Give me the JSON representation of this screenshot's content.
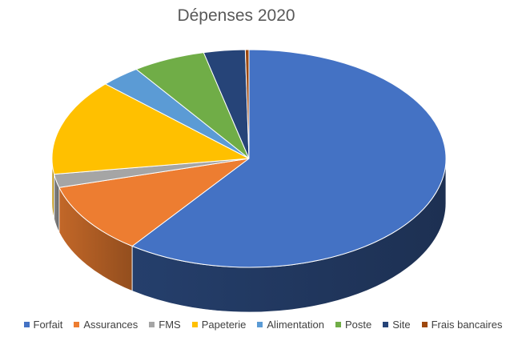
{
  "chart_data": {
    "type": "pie",
    "title": "Dépenses 2020",
    "three_d": true,
    "legend_position": "bottom",
    "categories": [
      "Forfait",
      "Assurances",
      "FMS",
      "Papeterie",
      "Alimentation",
      "Poste",
      "Site",
      "Frais bancaires"
    ],
    "values": [
      60.1,
      10.6,
      2.0,
      14.3,
      3.3,
      6.0,
      3.4,
      0.3
    ],
    "colors": [
      "#4472C4",
      "#ED7D31",
      "#A5A5A5",
      "#FFC000",
      "#5B9BD5",
      "#70AD47",
      "#264478",
      "#9E480E"
    ]
  }
}
